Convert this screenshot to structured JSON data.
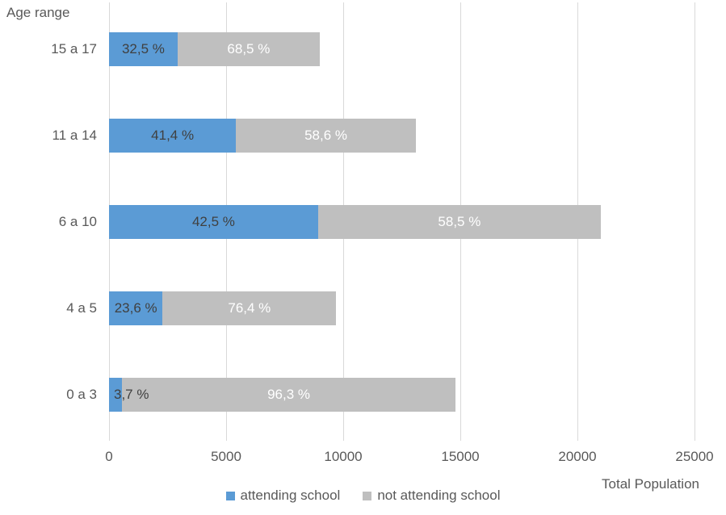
{
  "chart_data": {
    "type": "bar",
    "orientation": "horizontal",
    "stacked": true,
    "title": "",
    "xlabel": "Total Population",
    "ylabel": "Age range",
    "categories": [
      "15 a 17",
      "11 a 14",
      "6 a 10",
      "4 a 5",
      "0 a 3"
    ],
    "series": [
      {
        "name": "attending school",
        "color": "#5b9bd5",
        "label_color": "#404040",
        "percent_values": [
          32.5,
          41.4,
          42.5,
          23.6,
          3.7
        ],
        "percent_labels": [
          "32,5 %",
          "41,4 %",
          "42,5 %",
          "23,6 %",
          "3,7 %"
        ]
      },
      {
        "name": "not attending school",
        "color": "#bfbfbf",
        "label_color": "#ffffff",
        "percent_values": [
          68.5,
          58.6,
          58.5,
          76.4,
          96.3
        ],
        "percent_labels": [
          "68,5 %",
          "58,6 %",
          "58,5 %",
          "76,4 %",
          "96,3 %"
        ]
      }
    ],
    "totals_estimated": [
      9000,
      13100,
      21000,
      9700,
      14800
    ],
    "x_ticks": [
      "0",
      "5000",
      "10000",
      "15000",
      "20000",
      "25000"
    ],
    "x_tick_values": [
      0,
      5000,
      10000,
      15000,
      20000,
      25000
    ],
    "xlim": [
      0,
      25000
    ],
    "grid": "vertical",
    "gridline_color": "#d9d9d9",
    "text_color": "#595959",
    "legend_position": "bottom"
  }
}
